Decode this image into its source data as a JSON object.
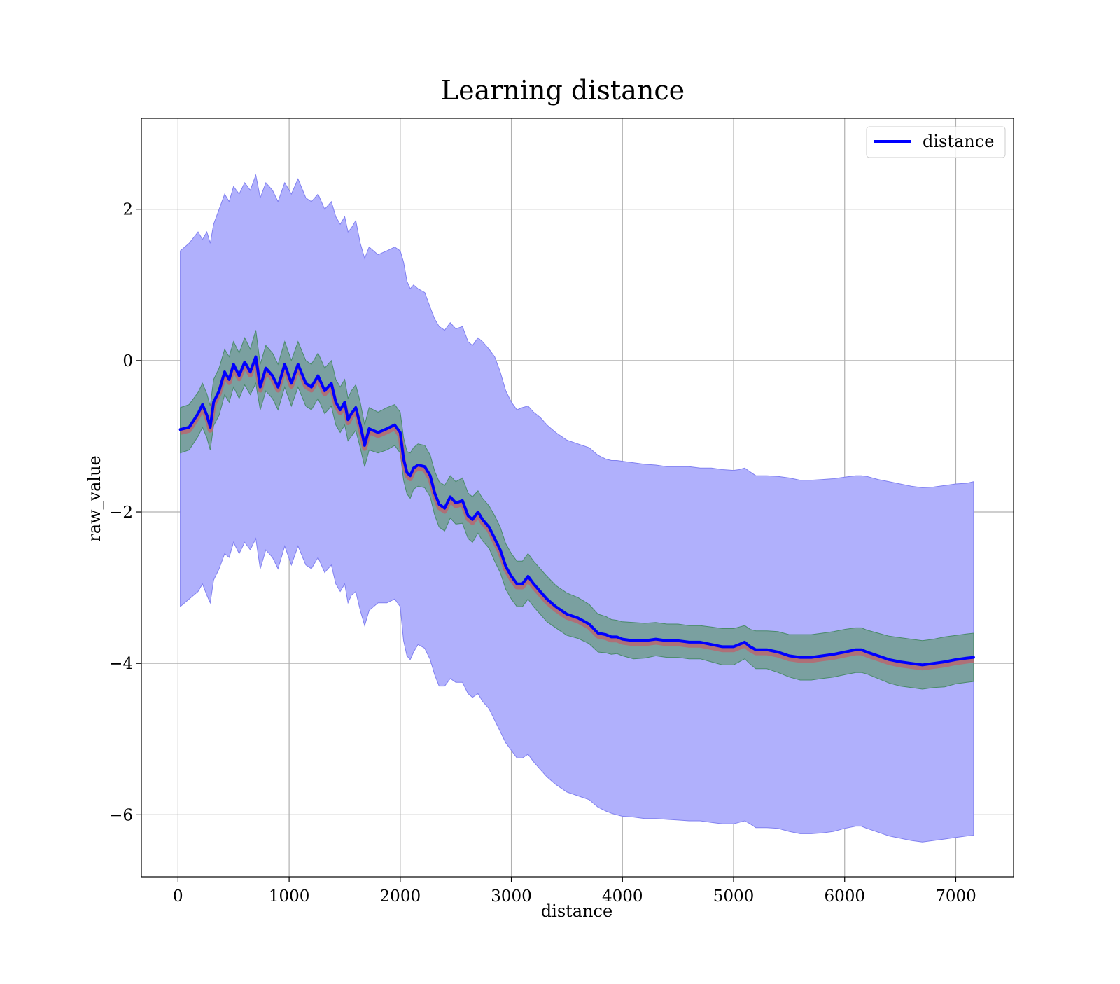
{
  "chart_data": {
    "type": "line",
    "title": "Learning distance",
    "xlabel": "distance",
    "ylabel": "raw_value",
    "xlim": [
      -330,
      7520
    ],
    "ylim": [
      -6.82,
      3.2
    ],
    "xticks": [
      0,
      1000,
      2000,
      3000,
      4000,
      5000,
      6000,
      7000
    ],
    "xtick_labels": [
      "0",
      "1000",
      "2000",
      "3000",
      "4000",
      "5000",
      "6000",
      "7000"
    ],
    "yticks": [
      2,
      0,
      -2,
      -4,
      -6
    ],
    "ytick_labels": [
      "2",
      "0",
      "−2",
      "−4",
      "−6"
    ],
    "grid": true,
    "legend": {
      "position": "top-right",
      "entries": [
        "distance"
      ]
    },
    "colors": {
      "line": "#0000ff",
      "outer_band": "#b0b0fc",
      "outer_band_edge": "#8080f0",
      "inner_band": "#7aa0a0",
      "inner_band_edge": "#4a8a6a",
      "mean_edge": "#c0606a"
    },
    "series": [
      {
        "name": "distance",
        "x": [
          20,
          100,
          180,
          220,
          260,
          290,
          320,
          370,
          420,
          460,
          500,
          550,
          600,
          650,
          700,
          740,
          790,
          850,
          900,
          960,
          1020,
          1080,
          1150,
          1200,
          1260,
          1320,
          1380,
          1420,
          1460,
          1500,
          1530,
          1560,
          1600,
          1640,
          1680,
          1720,
          1800,
          1880,
          1950,
          2000,
          2030,
          2060,
          2090,
          2120,
          2160,
          2220,
          2270,
          2310,
          2350,
          2400,
          2450,
          2500,
          2560,
          2610,
          2650,
          2700,
          2740,
          2800,
          2850,
          2900,
          2950,
          3000,
          3050,
          3100,
          3150,
          3200,
          3260,
          3320,
          3400,
          3500,
          3600,
          3700,
          3780,
          3850,
          3900,
          3950,
          4000,
          4100,
          4200,
          4300,
          4400,
          4500,
          4600,
          4700,
          4800,
          4900,
          5000,
          5050,
          5100,
          5150,
          5200,
          5300,
          5400,
          5500,
          5600,
          5700,
          5800,
          5900,
          6000,
          6100,
          6150,
          6200,
          6300,
          6400,
          6500,
          6600,
          6700,
          6800,
          6900,
          7000,
          7100,
          7160
        ],
        "mean": [
          -0.91,
          -0.88,
          -0.7,
          -0.58,
          -0.72,
          -0.88,
          -0.55,
          -0.4,
          -0.15,
          -0.25,
          -0.05,
          -0.2,
          -0.02,
          -0.15,
          0.05,
          -0.35,
          -0.1,
          -0.2,
          -0.35,
          -0.05,
          -0.3,
          -0.05,
          -0.3,
          -0.35,
          -0.2,
          -0.4,
          -0.3,
          -0.55,
          -0.65,
          -0.55,
          -0.78,
          -0.7,
          -0.62,
          -0.85,
          -1.12,
          -0.9,
          -0.95,
          -0.9,
          -0.85,
          -0.95,
          -1.3,
          -1.48,
          -1.52,
          -1.42,
          -1.38,
          -1.4,
          -1.52,
          -1.75,
          -1.9,
          -1.95,
          -1.8,
          -1.88,
          -1.85,
          -2.05,
          -2.1,
          -2.0,
          -2.1,
          -2.2,
          -2.35,
          -2.5,
          -2.72,
          -2.85,
          -2.95,
          -2.95,
          -2.85,
          -2.95,
          -3.05,
          -3.15,
          -3.25,
          -3.35,
          -3.4,
          -3.48,
          -3.6,
          -3.62,
          -3.65,
          -3.65,
          -3.68,
          -3.7,
          -3.7,
          -3.68,
          -3.7,
          -3.7,
          -3.72,
          -3.72,
          -3.75,
          -3.78,
          -3.78,
          -3.75,
          -3.72,
          -3.78,
          -3.82,
          -3.82,
          -3.85,
          -3.9,
          -3.92,
          -3.92,
          -3.9,
          -3.88,
          -3.85,
          -3.82,
          -3.82,
          -3.85,
          -3.9,
          -3.95,
          -3.98,
          -4.0,
          -4.02,
          -4.0,
          -3.98,
          -3.95,
          -3.93,
          -3.92
        ],
        "outer_upper": [
          1.45,
          1.55,
          1.7,
          1.6,
          1.7,
          1.55,
          1.8,
          2.0,
          2.2,
          2.1,
          2.3,
          2.2,
          2.35,
          2.25,
          2.45,
          2.15,
          2.35,
          2.25,
          2.1,
          2.35,
          2.2,
          2.4,
          2.15,
          2.1,
          2.2,
          2.0,
          2.1,
          1.9,
          1.8,
          1.9,
          1.7,
          1.75,
          1.85,
          1.55,
          1.35,
          1.5,
          1.4,
          1.45,
          1.5,
          1.45,
          1.3,
          1.05,
          0.95,
          1.0,
          0.95,
          0.9,
          0.7,
          0.55,
          0.45,
          0.4,
          0.5,
          0.42,
          0.45,
          0.25,
          0.2,
          0.3,
          0.25,
          0.15,
          0.05,
          -0.15,
          -0.4,
          -0.55,
          -0.65,
          -0.62,
          -0.6,
          -0.68,
          -0.75,
          -0.85,
          -0.95,
          -1.05,
          -1.1,
          -1.15,
          -1.25,
          -1.3,
          -1.32,
          -1.32,
          -1.33,
          -1.35,
          -1.37,
          -1.38,
          -1.4,
          -1.4,
          -1.4,
          -1.42,
          -1.42,
          -1.44,
          -1.45,
          -1.44,
          -1.42,
          -1.47,
          -1.52,
          -1.52,
          -1.53,
          -1.55,
          -1.58,
          -1.58,
          -1.57,
          -1.56,
          -1.54,
          -1.52,
          -1.52,
          -1.53,
          -1.57,
          -1.6,
          -1.63,
          -1.66,
          -1.68,
          -1.67,
          -1.65,
          -1.63,
          -1.62,
          -1.6
        ],
        "outer_lower": [
          -3.25,
          -3.15,
          -3.05,
          -2.95,
          -3.1,
          -3.2,
          -2.9,
          -2.75,
          -2.55,
          -2.6,
          -2.4,
          -2.55,
          -2.4,
          -2.5,
          -2.35,
          -2.75,
          -2.5,
          -2.6,
          -2.75,
          -2.45,
          -2.7,
          -2.45,
          -2.7,
          -2.75,
          -2.6,
          -2.8,
          -2.7,
          -2.95,
          -3.05,
          -2.95,
          -3.2,
          -3.1,
          -3.05,
          -3.3,
          -3.5,
          -3.3,
          -3.2,
          -3.2,
          -3.15,
          -3.25,
          -3.7,
          -3.9,
          -3.95,
          -3.85,
          -3.75,
          -3.8,
          -3.95,
          -4.15,
          -4.3,
          -4.3,
          -4.2,
          -4.25,
          -4.25,
          -4.4,
          -4.45,
          -4.4,
          -4.5,
          -4.6,
          -4.75,
          -4.9,
          -5.05,
          -5.15,
          -5.25,
          -5.25,
          -5.2,
          -5.3,
          -5.4,
          -5.5,
          -5.6,
          -5.7,
          -5.75,
          -5.8,
          -5.9,
          -5.95,
          -5.98,
          -6.0,
          -6.02,
          -6.03,
          -6.05,
          -6.05,
          -6.06,
          -6.07,
          -6.08,
          -6.08,
          -6.1,
          -6.12,
          -6.12,
          -6.1,
          -6.08,
          -6.12,
          -6.17,
          -6.17,
          -6.18,
          -6.22,
          -6.25,
          -6.25,
          -6.24,
          -6.22,
          -6.18,
          -6.15,
          -6.15,
          -6.18,
          -6.23,
          -6.28,
          -6.31,
          -6.34,
          -6.36,
          -6.34,
          -6.32,
          -6.3,
          -6.28,
          -6.27
        ],
        "inner_upper": [
          -0.62,
          -0.58,
          -0.42,
          -0.3,
          -0.44,
          -0.6,
          -0.25,
          -0.1,
          0.15,
          0.05,
          0.25,
          0.1,
          0.3,
          0.15,
          0.4,
          -0.05,
          0.2,
          0.1,
          -0.05,
          0.25,
          0.0,
          0.25,
          0.0,
          -0.05,
          0.1,
          -0.1,
          0.0,
          -0.25,
          -0.35,
          -0.25,
          -0.5,
          -0.4,
          -0.32,
          -0.55,
          -0.85,
          -0.62,
          -0.68,
          -0.62,
          -0.58,
          -0.68,
          -1.02,
          -1.2,
          -1.22,
          -1.15,
          -1.1,
          -1.12,
          -1.25,
          -1.46,
          -1.6,
          -1.65,
          -1.52,
          -1.6,
          -1.55,
          -1.75,
          -1.8,
          -1.72,
          -1.82,
          -1.92,
          -2.05,
          -2.2,
          -2.42,
          -2.55,
          -2.65,
          -2.65,
          -2.55,
          -2.65,
          -2.75,
          -2.85,
          -2.97,
          -3.07,
          -3.13,
          -3.22,
          -3.35,
          -3.38,
          -3.42,
          -3.43,
          -3.45,
          -3.46,
          -3.47,
          -3.46,
          -3.48,
          -3.48,
          -3.5,
          -3.5,
          -3.52,
          -3.54,
          -3.54,
          -3.52,
          -3.5,
          -3.55,
          -3.57,
          -3.57,
          -3.58,
          -3.62,
          -3.62,
          -3.62,
          -3.6,
          -3.58,
          -3.55,
          -3.53,
          -3.53,
          -3.56,
          -3.6,
          -3.64,
          -3.66,
          -3.68,
          -3.7,
          -3.68,
          -3.65,
          -3.63,
          -3.61,
          -3.6
        ],
        "inner_lower": [
          -1.22,
          -1.18,
          -1.0,
          -0.88,
          -1.02,
          -1.18,
          -0.86,
          -0.72,
          -0.45,
          -0.55,
          -0.35,
          -0.5,
          -0.32,
          -0.45,
          -0.3,
          -0.65,
          -0.4,
          -0.5,
          -0.65,
          -0.35,
          -0.6,
          -0.35,
          -0.6,
          -0.65,
          -0.5,
          -0.7,
          -0.6,
          -0.85,
          -0.95,
          -0.85,
          -1.06,
          -1.0,
          -0.92,
          -1.15,
          -1.4,
          -1.18,
          -1.22,
          -1.18,
          -1.12,
          -1.22,
          -1.58,
          -1.76,
          -1.82,
          -1.7,
          -1.66,
          -1.68,
          -1.8,
          -2.04,
          -2.2,
          -2.25,
          -2.08,
          -2.16,
          -2.15,
          -2.35,
          -2.4,
          -2.28,
          -2.38,
          -2.48,
          -2.65,
          -2.8,
          -3.02,
          -3.15,
          -3.25,
          -3.25,
          -3.15,
          -3.25,
          -3.35,
          -3.45,
          -3.53,
          -3.63,
          -3.67,
          -3.74,
          -3.85,
          -3.86,
          -3.88,
          -3.87,
          -3.9,
          -3.94,
          -3.93,
          -3.9,
          -3.92,
          -3.92,
          -3.94,
          -3.94,
          -3.98,
          -4.02,
          -4.02,
          -3.98,
          -3.94,
          -4.01,
          -4.07,
          -4.07,
          -4.12,
          -4.18,
          -4.22,
          -4.22,
          -4.2,
          -4.18,
          -4.15,
          -4.12,
          -4.12,
          -4.14,
          -4.2,
          -4.26,
          -4.3,
          -4.32,
          -4.34,
          -4.32,
          -4.31,
          -4.27,
          -4.25,
          -4.24
        ]
      }
    ]
  }
}
